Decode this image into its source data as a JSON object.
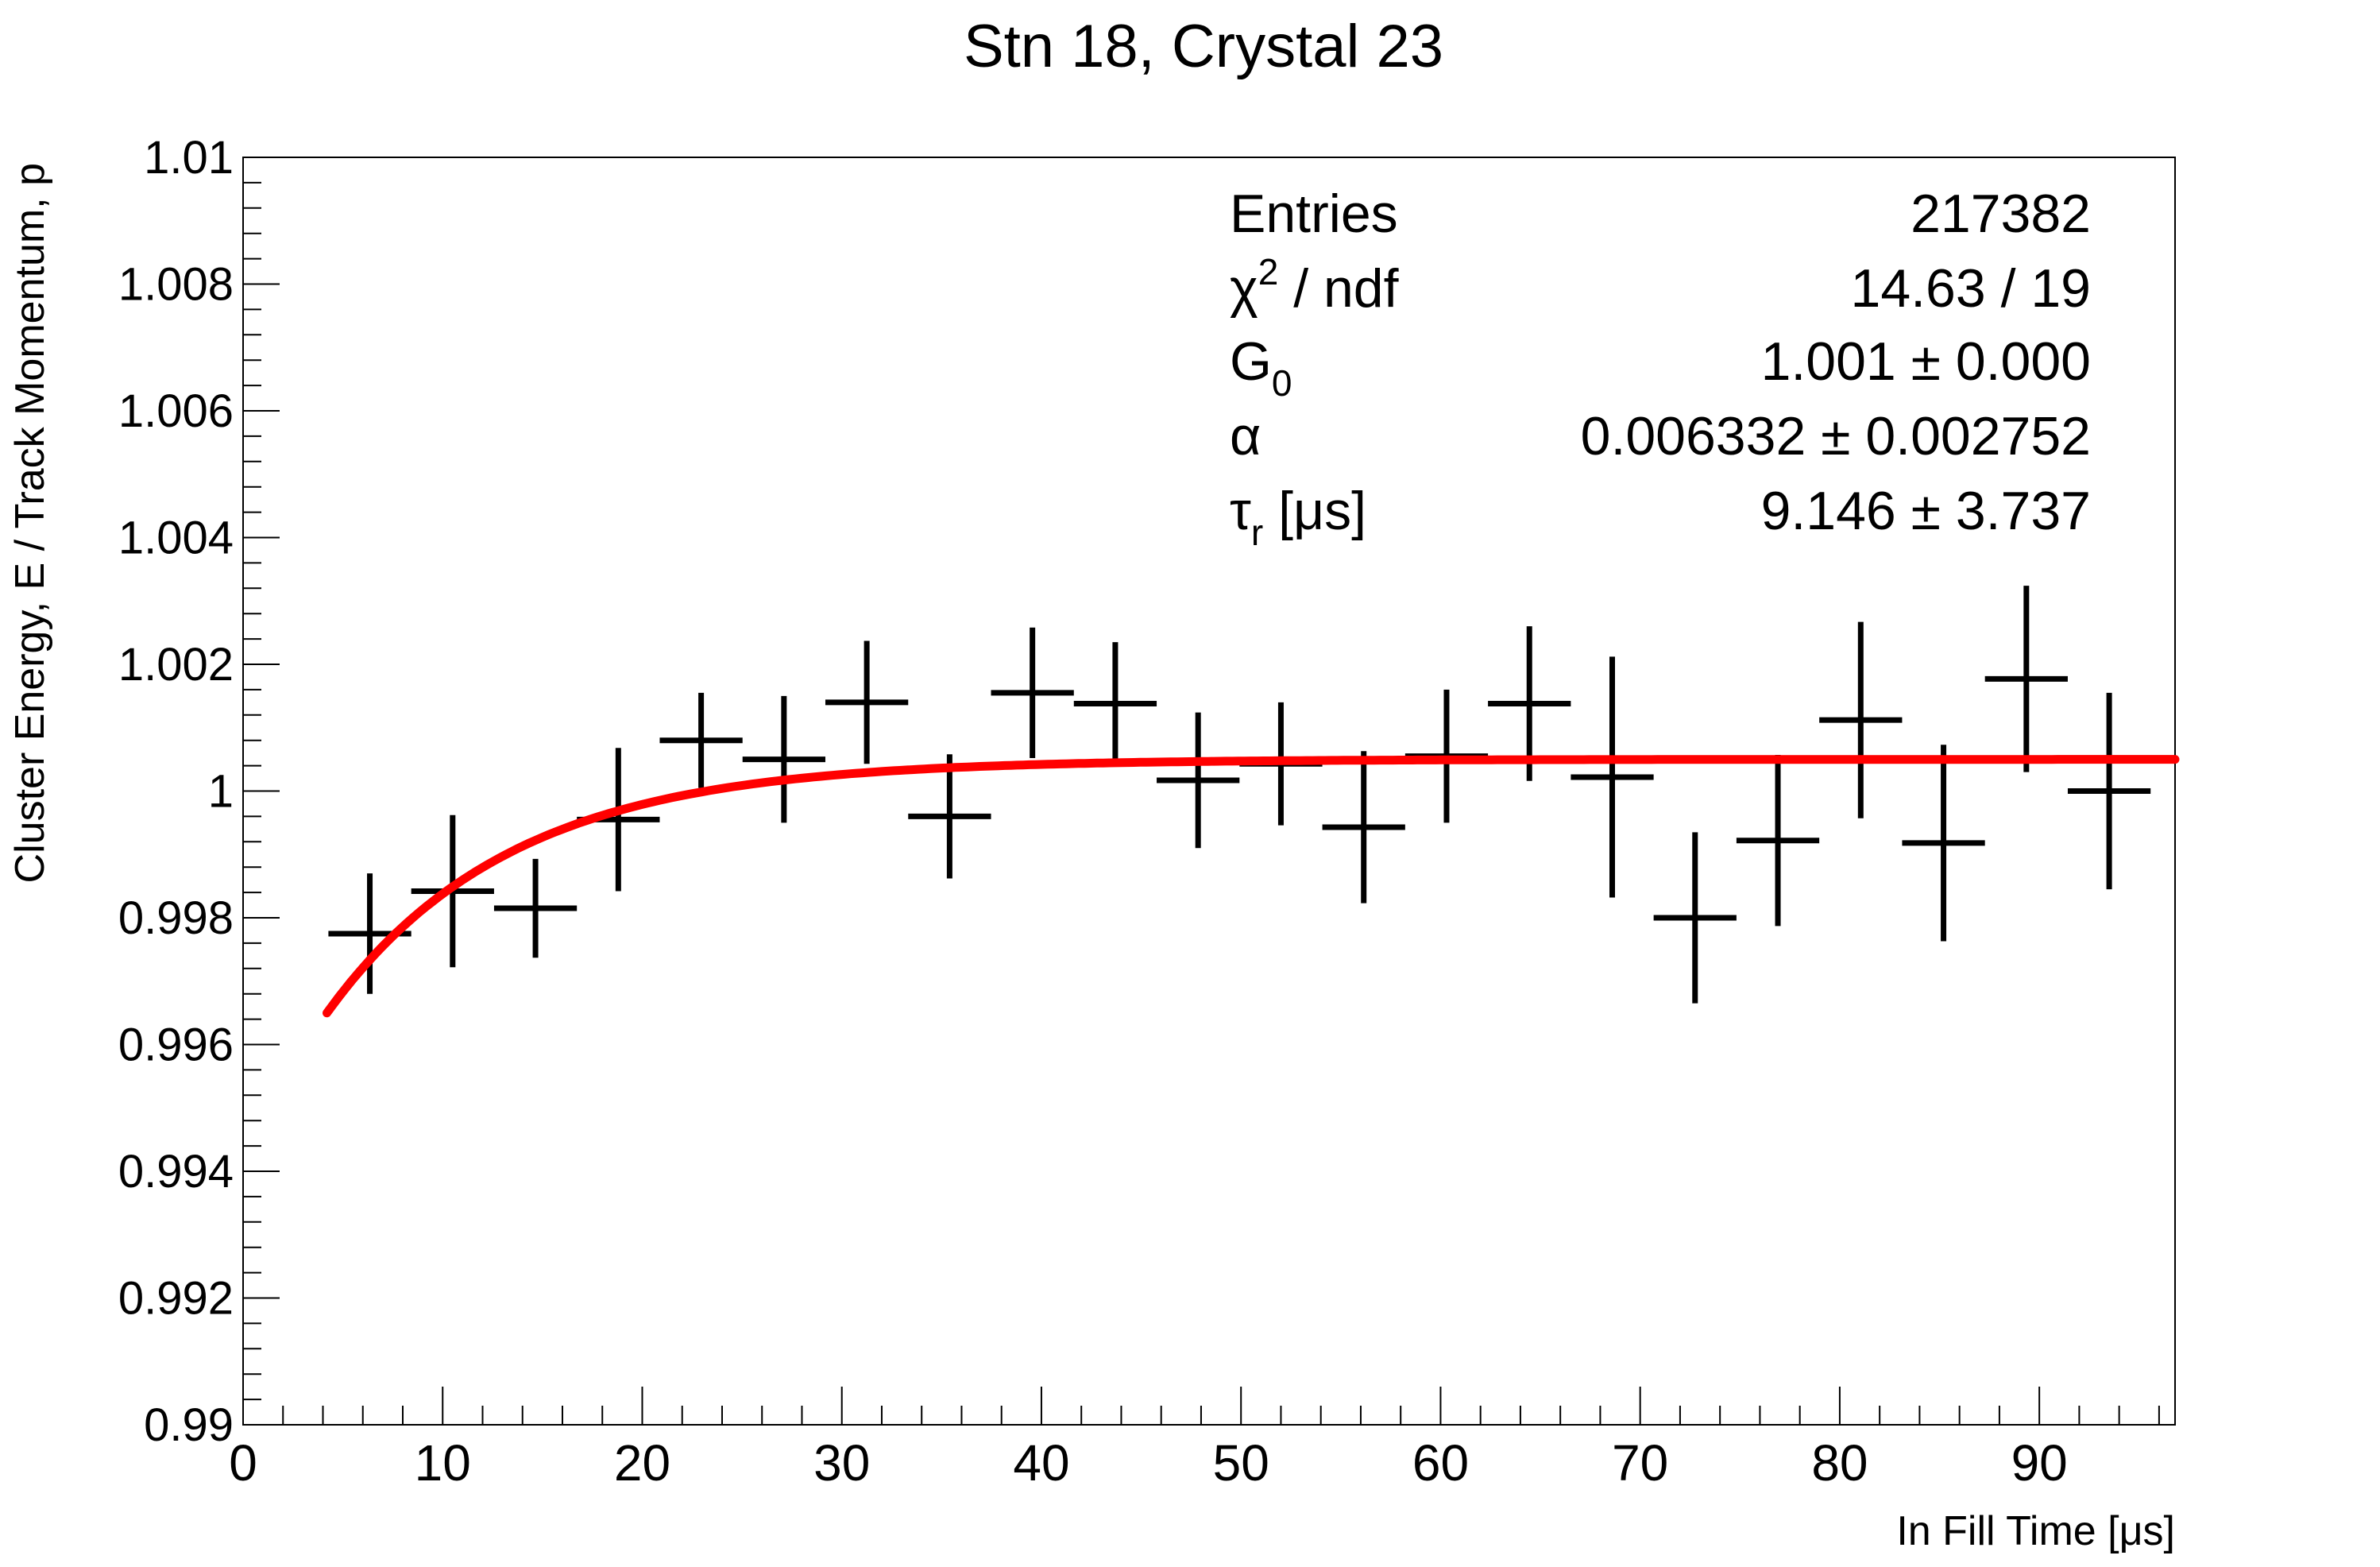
{
  "chart_data": {
    "type": "scatter",
    "title": "Stn 18, Crystal 23",
    "xlabel": "In Fill Time [μs]",
    "ylabel": "Cluster Energy, E / Track Momentum, p",
    "xlim": [
      0,
      96.8
    ],
    "ylim": [
      0.99,
      1.01
    ],
    "x_ticks": [
      0,
      10,
      20,
      30,
      40,
      50,
      60,
      70,
      80,
      90
    ],
    "x_tick_labels": [
      "0",
      "10",
      "20",
      "30",
      "40",
      "50",
      "60",
      "70",
      "80",
      "90"
    ],
    "y_ticks": [
      0.99,
      0.992,
      0.994,
      0.996,
      0.998,
      1.0,
      1.002,
      1.004,
      1.006,
      1.008,
      1.01
    ],
    "y_tick_labels": [
      "0.99",
      "0.992",
      "0.994",
      "0.996",
      "0.998",
      "1",
      "1.002",
      "1.004",
      "1.006",
      "1.008",
      "1.01"
    ],
    "grid": false,
    "legend": "none",
    "data_color": "#000000",
    "fit_color": "#ff0000",
    "series": [
      {
        "kind": "errorbars",
        "x": [
          6.35,
          10.5,
          14.65,
          18.8,
          22.95,
          27.1,
          31.25,
          35.4,
          39.55,
          43.7,
          47.85,
          52.0,
          56.15,
          60.3,
          64.45,
          68.6,
          72.75,
          76.9,
          81.05,
          85.2,
          89.35,
          93.5
        ],
        "y": [
          0.99775,
          0.99842,
          0.99815,
          0.99955,
          1.0008,
          1.0005,
          1.0014,
          0.9996,
          1.00155,
          1.00138,
          1.00017,
          1.00043,
          0.99943,
          1.00055,
          1.00138,
          1.00022,
          0.998,
          0.99922,
          1.00112,
          0.99918,
          1.00177,
          1.0
        ],
        "x_err": 2.075,
        "y_err": [
          0.00095,
          0.0012,
          0.00078,
          0.00113,
          0.00075,
          0.001,
          0.00097,
          0.00098,
          0.00103,
          0.00097,
          0.00107,
          0.00097,
          0.0012,
          0.00105,
          0.00122,
          0.0019,
          0.00135,
          0.00135,
          0.00155,
          0.00155,
          0.00147,
          0.00155
        ]
      },
      {
        "kind": "fit",
        "model": "G0 * (1 - alpha * exp(-t / tau_r))",
        "t_range": [
          4.2,
          96.8
        ]
      }
    ],
    "stats_box": {
      "rows": [
        {
          "label": "Entries",
          "value": "217382"
        },
        {
          "label": "χ2 / ndf",
          "value": "14.63 / 19"
        },
        {
          "label": "G0",
          "value": "1.001 ± 0.000"
        },
        {
          "label": "α",
          "value": "0.006332 ± 0.002752"
        },
        {
          "label": "τr [μs]",
          "value": "9.146 ± 3.737"
        }
      ],
      "params": {
        "G0": 1.0005,
        "alpha": 0.006332,
        "tau_r": 9.146
      }
    }
  }
}
